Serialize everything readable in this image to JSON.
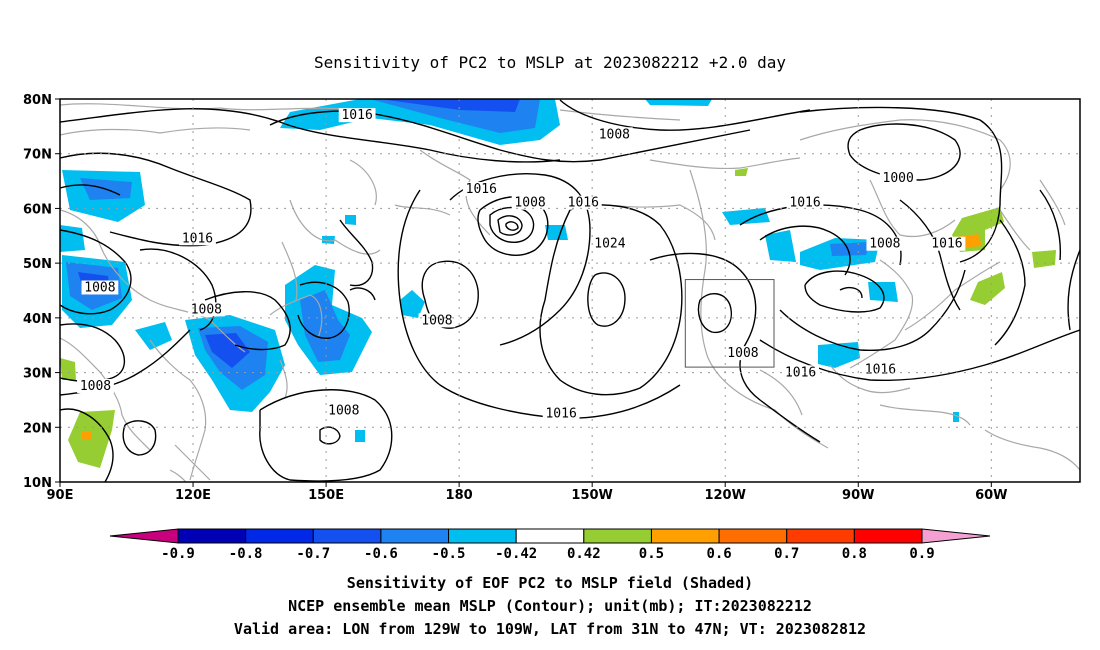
{
  "title": "Sensitivity of PC2 to MSLP at 2023082212 +2.0 day",
  "axes": {
    "lat_ticks": [
      "80N",
      "70N",
      "60N",
      "50N",
      "40N",
      "30N",
      "20N",
      "10N"
    ],
    "lon_ticks": [
      "90E",
      "120E",
      "150E",
      "180",
      "150W",
      "120W",
      "90W",
      "60W"
    ]
  },
  "contour_labels": [
    {
      "text": "1016",
      "lon": 157,
      "lat": 76.5
    },
    {
      "text": "1008",
      "lon": 215,
      "lat": 73
    },
    {
      "text": "1000",
      "lon": 279,
      "lat": 65
    },
    {
      "text": "1016",
      "lon": 185,
      "lat": 63
    },
    {
      "text": "1008",
      "lon": 196,
      "lat": 60.5
    },
    {
      "text": "1016",
      "lon": 208,
      "lat": 60.5
    },
    {
      "text": "1016",
      "lon": 258,
      "lat": 60.5
    },
    {
      "text": "1016",
      "lon": 121,
      "lat": 54
    },
    {
      "text": "1024",
      "lon": 214,
      "lat": 53
    },
    {
      "text": "1008",
      "lon": 276,
      "lat": 53
    },
    {
      "text": "1016",
      "lon": 290,
      "lat": 53
    },
    {
      "text": "1008",
      "lon": 99,
      "lat": 45
    },
    {
      "text": "1008",
      "lon": 123,
      "lat": 41
    },
    {
      "text": "1008",
      "lon": 175,
      "lat": 39
    },
    {
      "text": "1008",
      "lon": 244,
      "lat": 33
    },
    {
      "text": "1016",
      "lon": 257,
      "lat": 29.5
    },
    {
      "text": "1016",
      "lon": 275,
      "lat": 30
    },
    {
      "text": "1008",
      "lon": 98,
      "lat": 27
    },
    {
      "text": "1008",
      "lon": 154,
      "lat": 22.5
    },
    {
      "text": "1016",
      "lon": 203,
      "lat": 22
    }
  ],
  "colorbar": {
    "labels": [
      "-0.9",
      "-0.8",
      "-0.7",
      "-0.6",
      "-0.5",
      "-0.42",
      "0.42",
      "0.5",
      "0.6",
      "0.7",
      "0.8",
      "0.9"
    ],
    "colors": [
      "#c8007e",
      "#0000b5",
      "#0028e6",
      "#1450f0",
      "#1e82f0",
      "#00bef0",
      "#ffffff",
      "#96cd32",
      "#ffa000",
      "#ff6e00",
      "#ff3c00",
      "#ff0000",
      "#f5a0d2"
    ]
  },
  "captions": [
    "Sensitivity of EOF PC2 to MSLP field (Shaded)",
    "NCEP ensemble mean MSLP (Contour); unit(mb); IT:2023082212",
    "Valid area: LON from 129W to 109W, LAT from 31N to 47N; VT: 2023082812"
  ],
  "valid_area": {
    "lon_min": -129,
    "lon_max": -109,
    "lat_min": 31,
    "lat_max": 47
  }
}
